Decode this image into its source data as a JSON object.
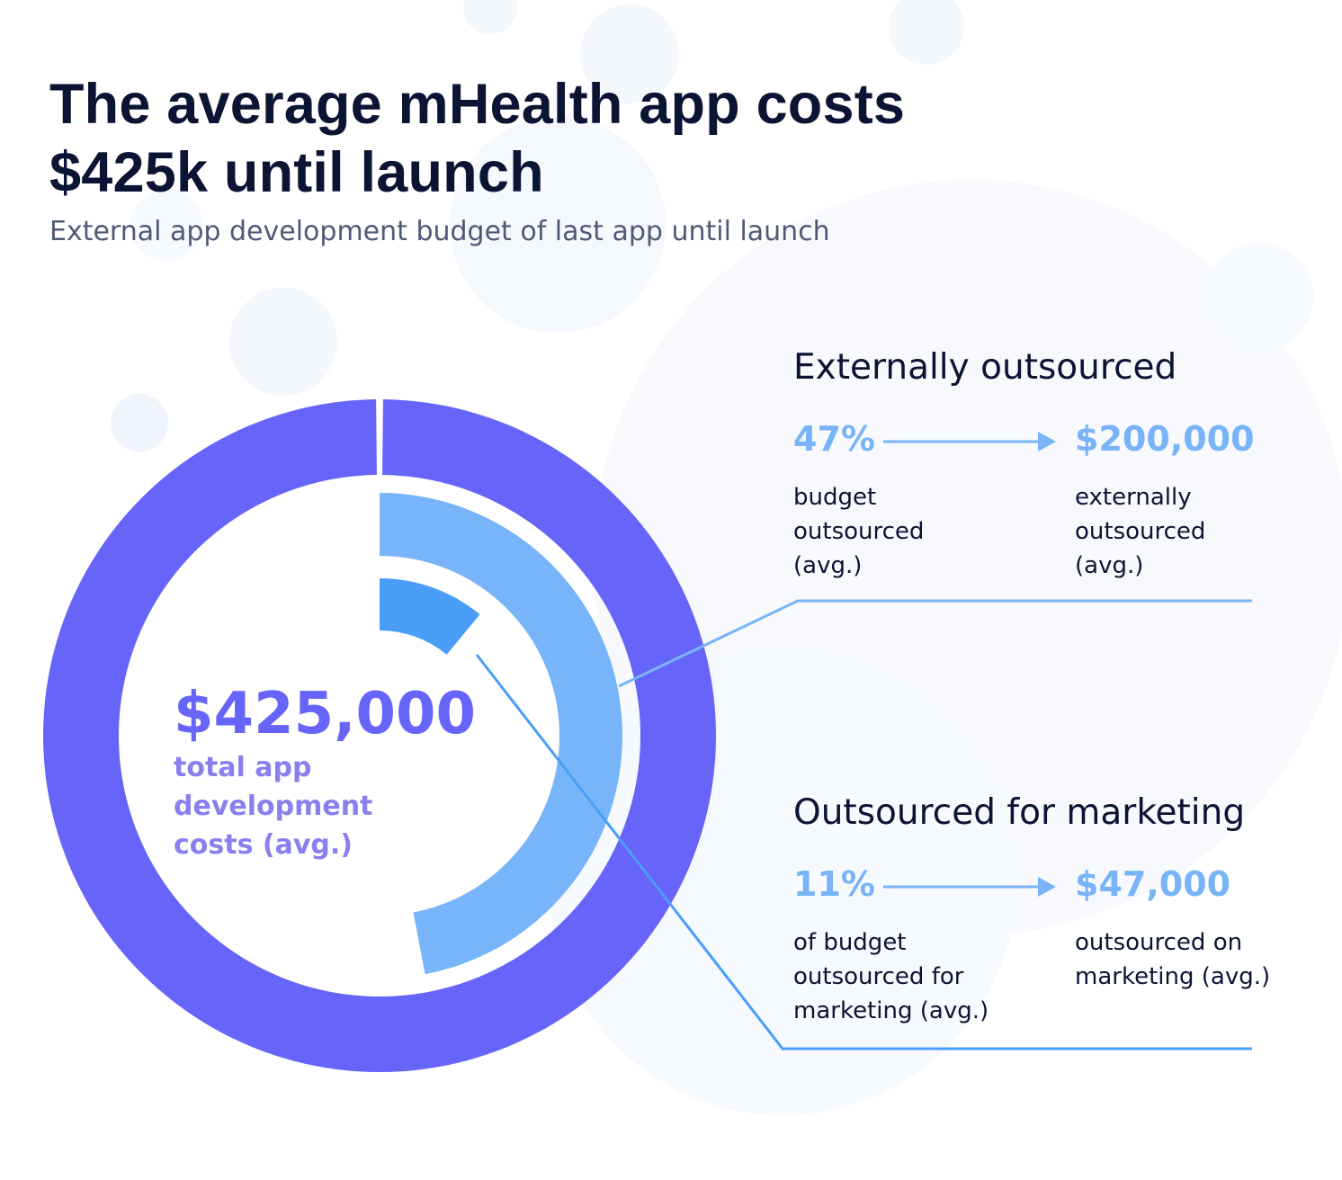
{
  "title_line1": "The average mHealth app costs",
  "title_line2": "$425k until launch",
  "subtitle": "External app development budget of last app until launch",
  "center": {
    "value": "$425,000",
    "description": "total app development costs (avg.)"
  },
  "sections": {
    "external": {
      "title": "Externally outsourced",
      "percent": "47%",
      "amount": "$200,000",
      "percent_desc": "budget outsourced (avg.)",
      "amount_desc": "externally outsourced (avg.)"
    },
    "marketing": {
      "title": "Outsourced for marketing",
      "percent": "11%",
      "amount": "$47,000",
      "percent_desc": "of budget outsourced for marketing (avg.)",
      "amount_desc": "outsourced on marketing (avg.)"
    }
  },
  "chart_data": {
    "type": "pie",
    "total": 425000,
    "rings": [
      {
        "value": 425000,
        "fraction": 1.0,
        "color": "#6764fa"
      },
      {
        "value": 200000,
        "fraction": 0.47,
        "color": "#78b4fa"
      },
      {
        "value": 47000,
        "fraction": 0.11,
        "color": "#4a9ef8"
      }
    ]
  },
  "colors": {
    "title": "#0b1433",
    "subtitle": "#4f5a77",
    "accent_total": "#6764fa",
    "accent_stat": "#78b4f7",
    "connector": "#78b4f7",
    "arrow": "#78b4f7"
  }
}
